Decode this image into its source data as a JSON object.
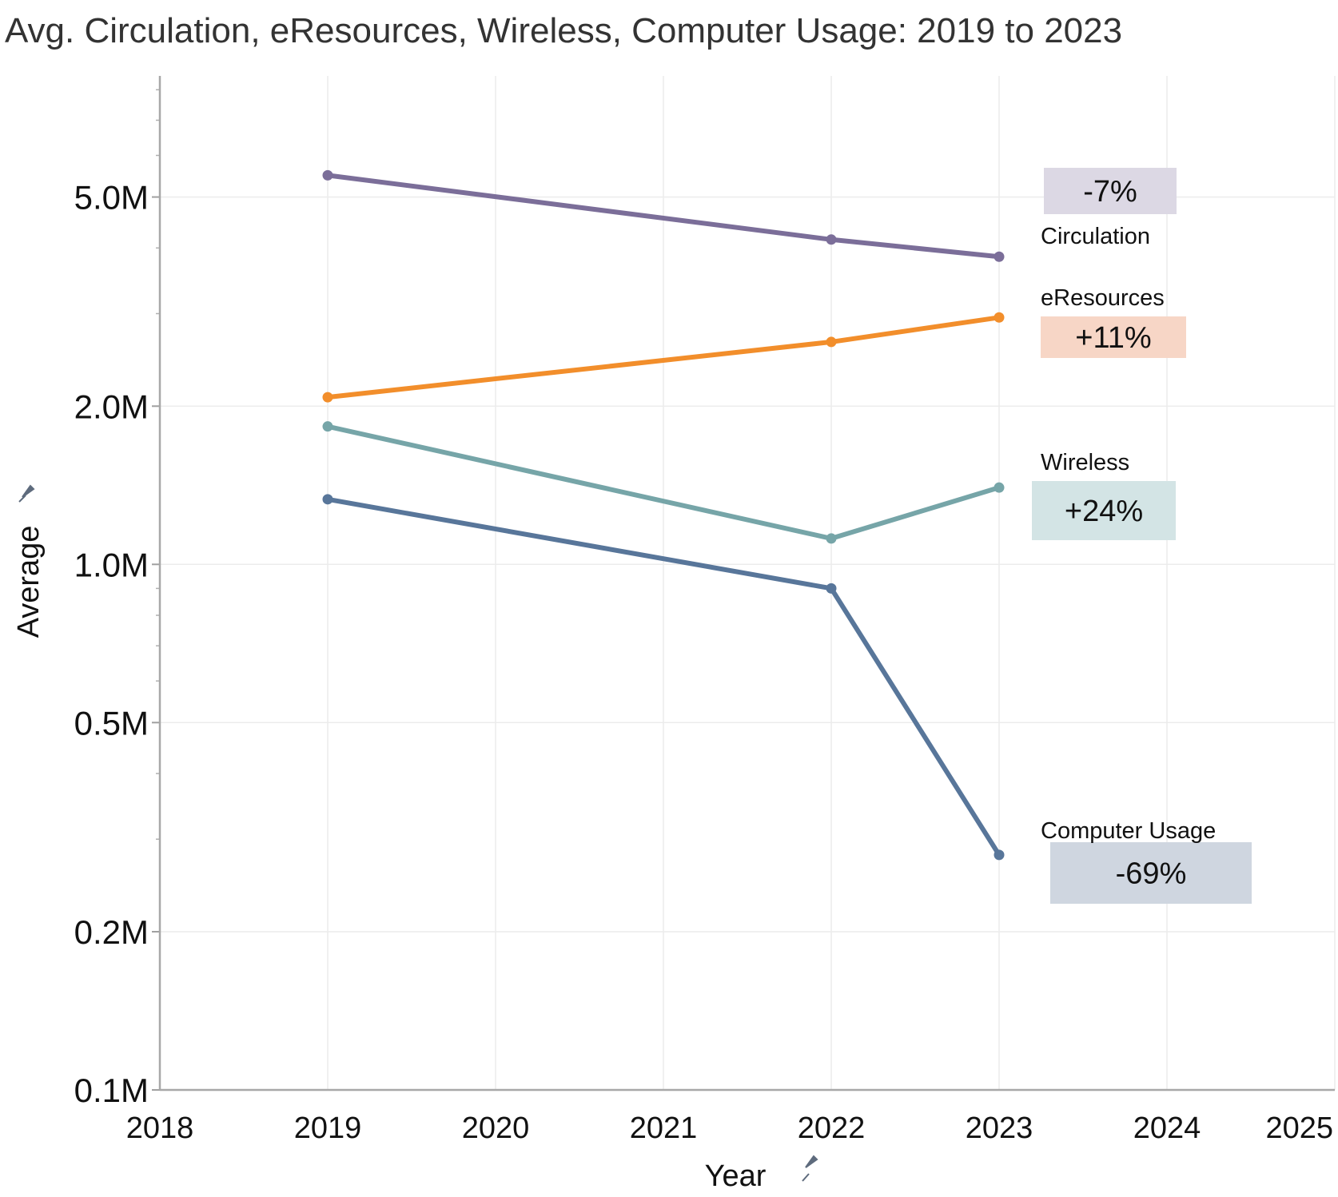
{
  "title": "Avg. Circulation, eResources, Wireless, Computer Usage: 2019 to 2023",
  "chart_data": {
    "type": "line",
    "title": "Avg. Circulation, eResources, Wireless, Computer Usage: 2019 to 2023",
    "xlabel": "Year",
    "ylabel": "Average",
    "y_scale": "log",
    "xlim": [
      2018,
      2025
    ],
    "ylim": [
      0.1,
      8.5
    ],
    "y_unit": "M",
    "x_ticks": [
      "2018",
      "2019",
      "2020",
      "2021",
      "2022",
      "2023",
      "2024",
      "2025"
    ],
    "y_ticks": [
      {
        "value": 0.1,
        "label": "0.1M"
      },
      {
        "value": 0.2,
        "label": "0.2M"
      },
      {
        "value": 0.5,
        "label": "0.5M"
      },
      {
        "value": 1.0,
        "label": "1.0M"
      },
      {
        "value": 2.0,
        "label": "2.0M"
      },
      {
        "value": 5.0,
        "label": "5.0M"
      }
    ],
    "grid": true,
    "series": [
      {
        "name": "Circulation",
        "color": "#7b6e99",
        "badge_color": "#dcd8e4",
        "x": [
          2019,
          2022,
          2023
        ],
        "values": [
          5.5,
          4.15,
          3.85
        ],
        "change": "-7%"
      },
      {
        "name": "eResources",
        "color": "#f28e2b",
        "badge_color": "#f7d6c6",
        "x": [
          2019,
          2022,
          2023
        ],
        "values": [
          2.08,
          2.65,
          2.95
        ],
        "change": "+11%"
      },
      {
        "name": "Wireless",
        "color": "#76a5a8",
        "badge_color": "#d3e4e5",
        "x": [
          2019,
          2022,
          2023
        ],
        "values": [
          1.83,
          1.12,
          1.4
        ],
        "change": "+24%"
      },
      {
        "name": "Computer Usage",
        "color": "#58769a",
        "badge_color": "#cfd6e0",
        "x": [
          2019,
          2022,
          2023
        ],
        "values": [
          1.33,
          0.9,
          0.28
        ],
        "change": "-69%"
      }
    ]
  }
}
